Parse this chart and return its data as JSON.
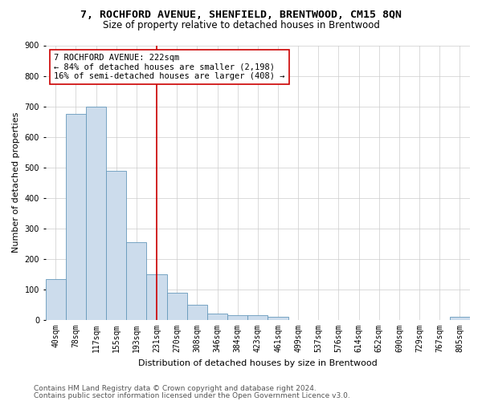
{
  "title": "7, ROCHFORD AVENUE, SHENFIELD, BRENTWOOD, CM15 8QN",
  "subtitle": "Size of property relative to detached houses in Brentwood",
  "xlabel": "Distribution of detached houses by size in Brentwood",
  "ylabel": "Number of detached properties",
  "bar_color": "#ccdcec",
  "bar_edge_color": "#6699bb",
  "categories": [
    "40sqm",
    "78sqm",
    "117sqm",
    "155sqm",
    "193sqm",
    "231sqm",
    "270sqm",
    "308sqm",
    "346sqm",
    "384sqm",
    "423sqm",
    "461sqm",
    "499sqm",
    "537sqm",
    "576sqm",
    "614sqm",
    "652sqm",
    "690sqm",
    "729sqm",
    "767sqm",
    "805sqm"
  ],
  "values": [
    135,
    675,
    700,
    490,
    255,
    150,
    90,
    50,
    22,
    17,
    17,
    10,
    0,
    0,
    0,
    0,
    0,
    0,
    0,
    0,
    10
  ],
  "vline_x": 5,
  "vline_color": "#cc0000",
  "annotation_text": "7 ROCHFORD AVENUE: 222sqm\n← 84% of detached houses are smaller (2,198)\n16% of semi-detached houses are larger (408) →",
  "annotation_box_color": "#ffffff",
  "annotation_box_edge_color": "#cc0000",
  "ylim": [
    0,
    900
  ],
  "yticks": [
    0,
    100,
    200,
    300,
    400,
    500,
    600,
    700,
    800,
    900
  ],
  "footer1": "Contains HM Land Registry data © Crown copyright and database right 2024.",
  "footer2": "Contains public sector information licensed under the Open Government Licence v3.0.",
  "background_color": "#ffffff",
  "plot_background_color": "#ffffff",
  "grid_color": "#cccccc",
  "title_fontsize": 9.5,
  "subtitle_fontsize": 8.5,
  "xlabel_fontsize": 8,
  "ylabel_fontsize": 8,
  "tick_fontsize": 7,
  "annotation_fontsize": 7.5,
  "footer_fontsize": 6.5
}
